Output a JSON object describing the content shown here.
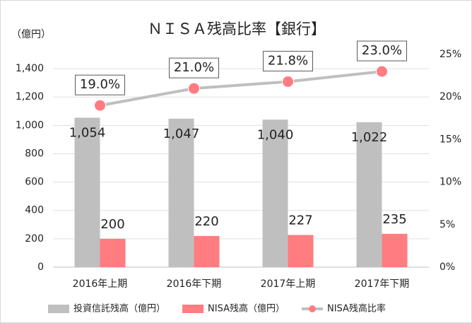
{
  "chart_data": {
    "type": "bar_line",
    "title": "ＮＩＳＡ残高比率【銀行】",
    "y_label": "（億円）",
    "categories": [
      "2016年上期",
      "2016年下期",
      "2017年上期",
      "2017年下期"
    ],
    "series": [
      {
        "name": "投資信託残高（億円）",
        "type": "bar",
        "color": "#bfbfbf",
        "values": [
          1054,
          1047,
          1040,
          1022
        ],
        "value_labels": [
          "1,054",
          "1,047",
          "1,040",
          "1,022"
        ]
      },
      {
        "name": "NISA残高（億円）",
        "type": "bar",
        "color": "#ff7c80",
        "values": [
          200,
          220,
          227,
          235
        ]
      },
      {
        "name": "NISA残高比率",
        "type": "line",
        "axis": "y2",
        "color": "#bfbfbf",
        "marker_color": "#ff7c80",
        "values": [
          19.0,
          21.0,
          21.8,
          23.0
        ],
        "value_labels": [
          "19.0%",
          "21.0%",
          "21.8%",
          "23.0%"
        ]
      }
    ],
    "ylim": [
      0,
      1500
    ],
    "yticks": [
      0,
      200,
      400,
      600,
      800,
      {
        "value": 1000,
        "label": "1,000"
      },
      {
        "value": 1200,
        "label": "1,200"
      },
      {
        "value": 1400,
        "label": "1,400"
      }
    ],
    "y2lim": [
      0,
      25
    ],
    "y2ticks": [
      {
        "value": 0,
        "label": "0%"
      },
      {
        "value": 5,
        "label": "5%"
      },
      {
        "value": 10,
        "label": "10%"
      },
      {
        "value": 15,
        "label": "15%"
      },
      {
        "value": 20,
        "label": "20%"
      },
      {
        "value": 25,
        "label": "25%"
      }
    ],
    "grid": true
  }
}
